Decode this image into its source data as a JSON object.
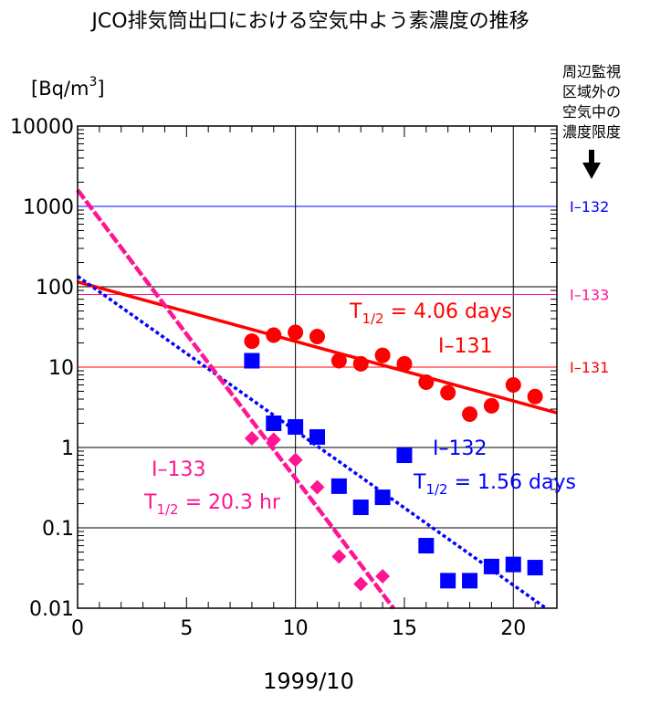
{
  "chart_data": {
    "type": "scatter",
    "title": "JCO排気筒出口における空気中よう素濃度の推移",
    "ylabel_main": "[Bq/m",
    "ylabel_sup": "3",
    "ylabel_end": "]",
    "xlabel": "1999/10",
    "xlim": [
      0,
      22
    ],
    "ylim": [
      0.01,
      10000
    ],
    "yscale": "log",
    "x_ticks": [
      "0",
      "5",
      "10",
      "15",
      "20"
    ],
    "x_tick_values": [
      0,
      5,
      10,
      15,
      20
    ],
    "y_ticks": [
      "0.01",
      "0.1",
      "1",
      "10",
      "100",
      "1000",
      "10000"
    ],
    "y_tick_values": [
      0.01,
      0.1,
      1,
      10,
      100,
      1000,
      10000
    ],
    "limit_caption": [
      "周辺監視",
      "区域外の",
      "空気中の",
      "濃度限度"
    ],
    "limits": [
      {
        "name": "I–132",
        "value": 1000,
        "color": "#0000ff"
      },
      {
        "name": "I–133",
        "value": 80,
        "color": "#ff1493"
      },
      {
        "name": "I–131",
        "value": 10,
        "color": "#ff0000"
      }
    ],
    "series": [
      {
        "name": "I–131",
        "color": "#ff0000",
        "marker": "circle",
        "halflife_label": "= 4.06 days",
        "x": [
          8,
          9,
          10,
          11,
          12,
          13,
          14,
          15,
          16,
          17,
          18,
          19,
          20,
          21
        ],
        "y": [
          21,
          25,
          27,
          24,
          12,
          11,
          14,
          11,
          6.5,
          4.8,
          2.6,
          3.3,
          6,
          4.3
        ],
        "fit": {
          "x0": 0,
          "y0": 115,
          "x1": 22,
          "y1": 2.7
        }
      },
      {
        "name": "I–132",
        "color": "#0000ff",
        "marker": "square",
        "halflife_label": "= 1.56 days",
        "x": [
          8,
          9,
          10,
          11,
          12,
          13,
          14,
          15,
          16,
          17,
          18,
          19,
          20,
          21
        ],
        "y": [
          12,
          2,
          1.8,
          1.35,
          0.33,
          0.18,
          0.24,
          0.8,
          0.06,
          0.022,
          0.022,
          0.033,
          0.035,
          0.032
        ],
        "fit": {
          "x0": 0,
          "y0": 135,
          "x1": 21.5,
          "y1": 0.01
        }
      },
      {
        "name": "I–133",
        "color": "#ff1493",
        "marker": "diamond",
        "halflife_label": "= 20.3 hr",
        "x": [
          8,
          9,
          10,
          11,
          12,
          13,
          14
        ],
        "y": [
          1.3,
          1.25,
          0.7,
          0.32,
          0.044,
          0.02,
          0.025
        ],
        "fit": {
          "x0": 0,
          "y0": 1600,
          "x1": 14.5,
          "y1": 0.01
        }
      }
    ],
    "halflife_prefix": "T",
    "halflife_sub": "1/2"
  }
}
